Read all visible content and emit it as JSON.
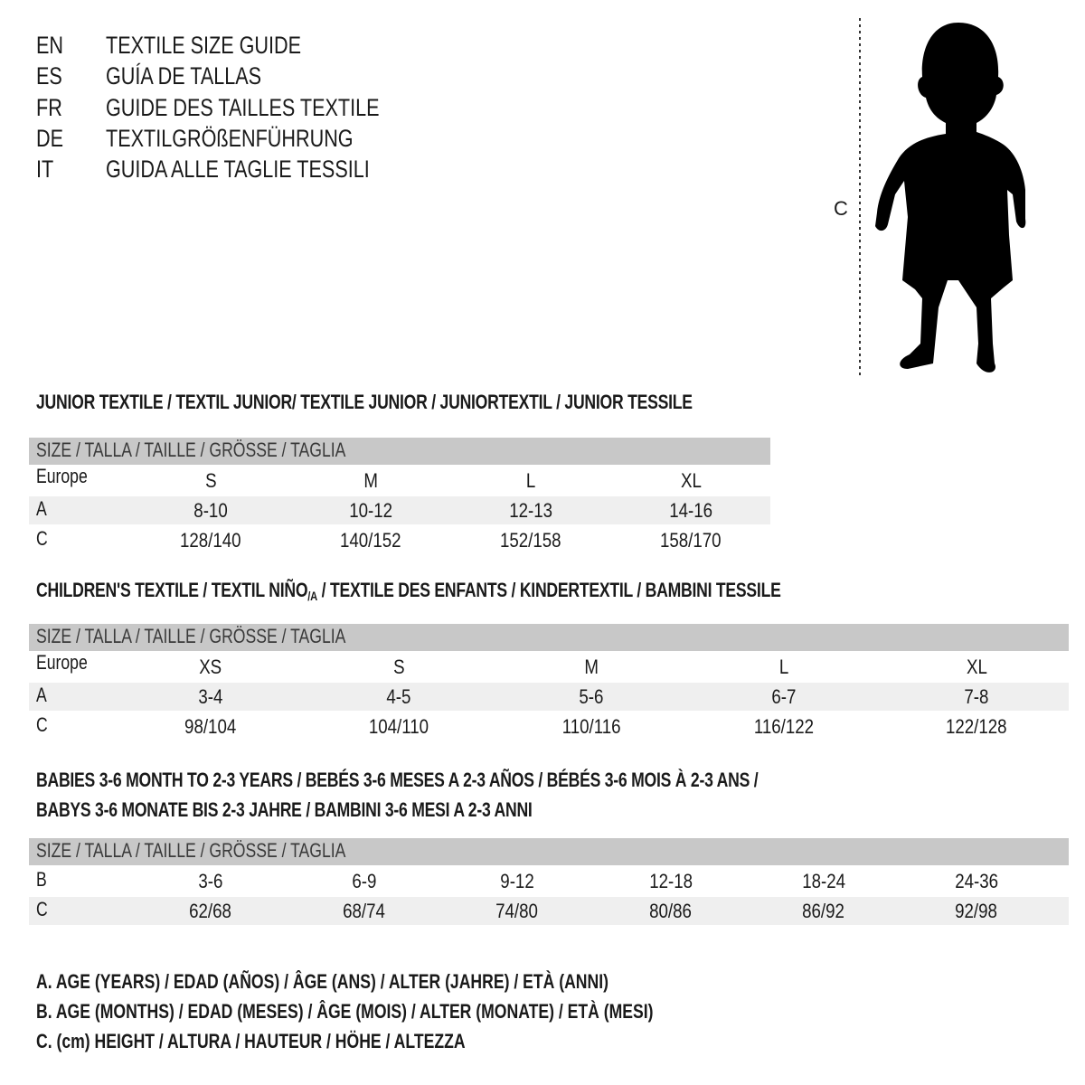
{
  "guide_titles": [
    {
      "code": "EN",
      "title": "TEXTILE SIZE GUIDE"
    },
    {
      "code": "ES",
      "title": "GUÍA DE TALLAS"
    },
    {
      "code": "FR",
      "title": "GUIDE DES TAILLES TEXTILE"
    },
    {
      "code": "DE",
      "title": "TEXTILGRÖßENFÜHRUNG"
    },
    {
      "code": "IT",
      "title": "GUIDA ALLE TAGLIE TESSILI"
    }
  ],
  "figure": {
    "measure_label": "C",
    "icon": "child-silhouette-icon"
  },
  "junior": {
    "title": "JUNIOR TEXTILE / TEXTIL JUNIOR/ TEXTILE JUNIOR / JUNIORTEXTIL / JUNIOR TESSILE",
    "header": "SIZE / TALLA / TAILLE / GRÖSSE / TAGLIA",
    "rows": [
      {
        "label": "Europe",
        "values": [
          "S",
          "M",
          "L",
          "XL"
        ]
      },
      {
        "label": "A",
        "values": [
          "8-10",
          "10-12",
          "12-13",
          "14-16"
        ]
      },
      {
        "label": "C",
        "values": [
          "128/140",
          "140/152",
          "152/158",
          "158/170"
        ]
      }
    ]
  },
  "children": {
    "title_main": "CHILDREN'S TEXTILE / TEXTIL NIÑO",
    "title_sub": "/A",
    "title_rest": " / TEXTILE DES ENFANTS / KINDERTEXTIL / BAMBINI TESSILE",
    "header": "SIZE / TALLA / TAILLE / GRÖSSE / TAGLIA",
    "rows": [
      {
        "label": "Europe",
        "values": [
          "XS",
          "S",
          "M",
          "L",
          "XL"
        ]
      },
      {
        "label": "A",
        "values": [
          "3-4",
          "4-5",
          "5-6",
          "6-7",
          "7-8"
        ]
      },
      {
        "label": "C",
        "values": [
          "98/104",
          "104/110",
          "110/116",
          "116/122",
          "122/128"
        ]
      }
    ]
  },
  "babies": {
    "title_line1": "BABIES 3-6 MONTH TO 2-3 YEARS / BEBÉS 3-6 MESES A 2-3 AÑOS / BÉBÉS 3-6 MOIS À 2-3 ANS /",
    "title_line2": "BABYS 3-6 MONATE BIS 2-3 JAHRE / BAMBINI 3-6 MESI A 2-3 ANNI",
    "header": "SIZE / TALLA / TAILLE / GRÖSSE / TAGLIA",
    "rows": [
      {
        "label": "B",
        "values": [
          "3-6",
          "6-9",
          "9-12",
          "12-18",
          "18-24",
          "24-36"
        ]
      },
      {
        "label": "C",
        "values": [
          "62/68",
          "68/74",
          "74/80",
          "80/86",
          "86/92",
          "92/98"
        ]
      }
    ]
  },
  "legend": [
    "A. AGE (YEARS) / EDAD (AÑOS) / ÂGE (ANS) / ALTER (JAHRE) / ETÀ (ANNI)",
    "B. AGE (MONTHS) / EDAD (MESES) / ÂGE (MOIS) / ALTER (MONATE) / ETÀ (MESI)",
    "C. (cm) HEIGHT / ALTURA / HAUTEUR / HÖHE / ALTEZZA"
  ],
  "colors": {
    "header_bar": "#c8c8c8",
    "alt_row": "#efefef",
    "text": "#1a1a1a"
  }
}
